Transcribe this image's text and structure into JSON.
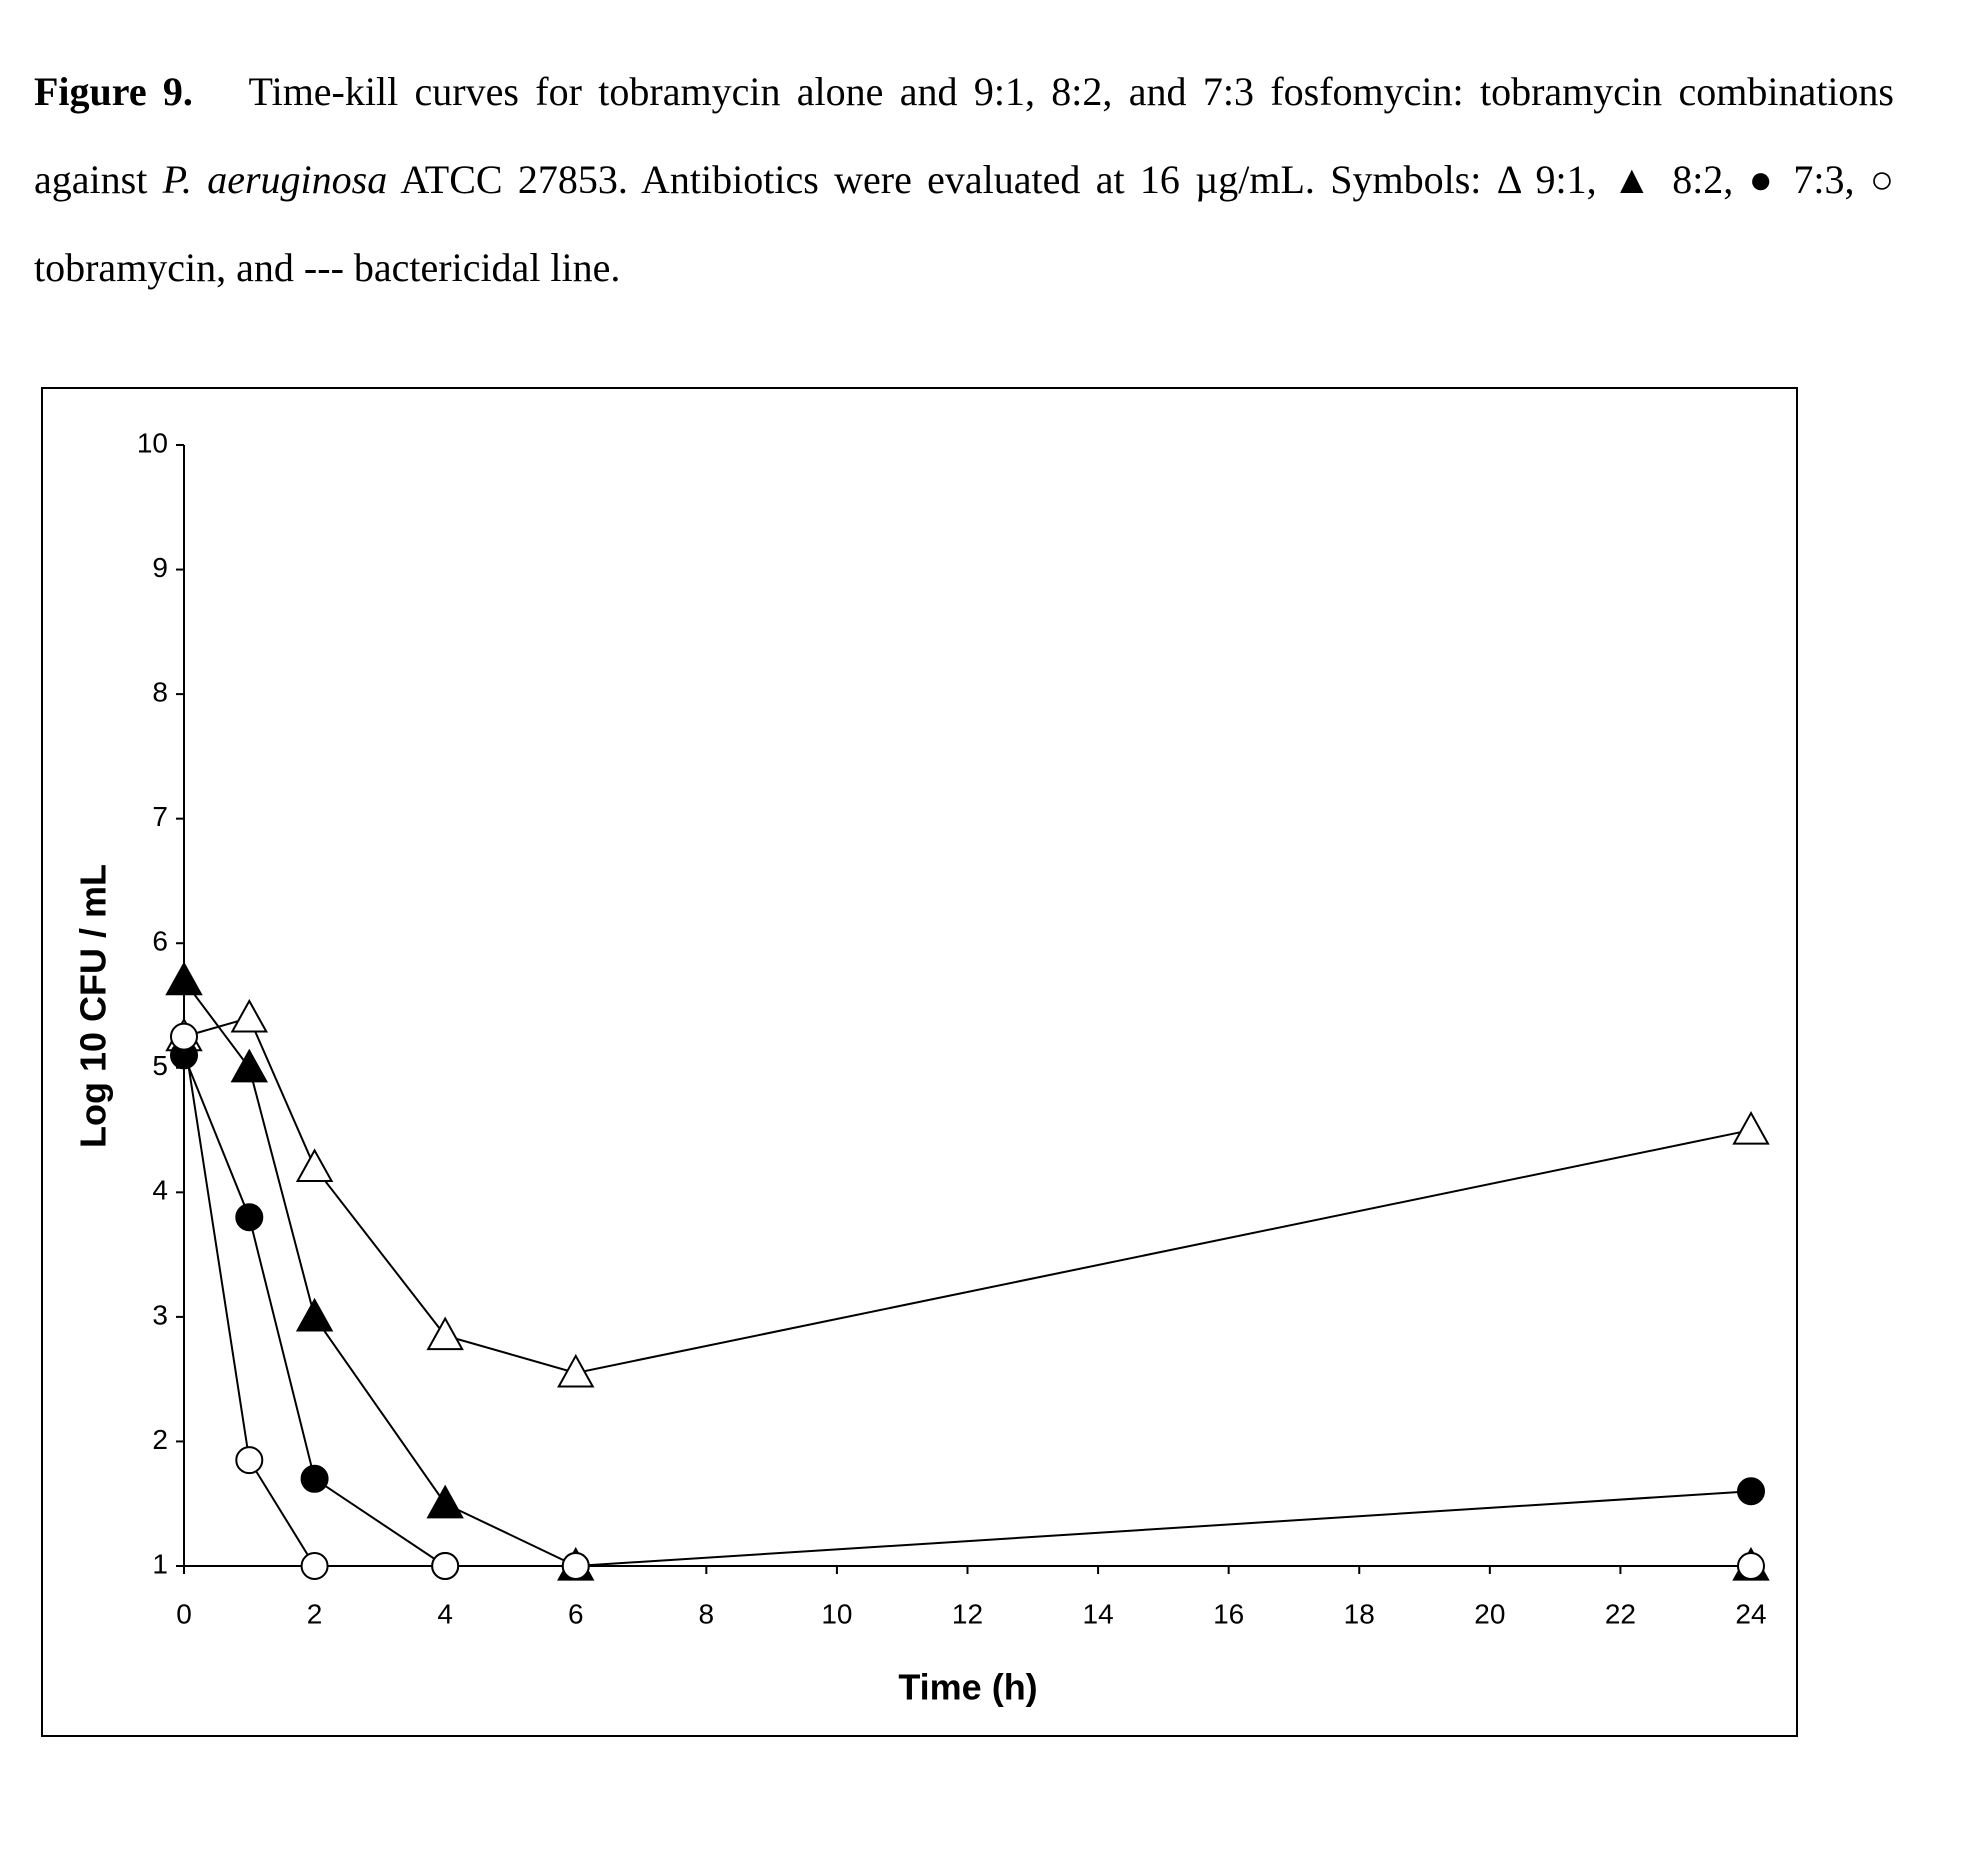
{
  "caption": {
    "parts": [
      "Figure 9.",
      "Time-kill curves for tobramycin alone and 9:1, 8:2, and 7:3 fosfomycin: tobramycin combinations against",
      "P. aeruginosa",
      "ATCC 27853.  Antibiotics were evaluated at 16 µg/mL.  Symbols: Δ 9:1,",
      "▲ 8:2,",
      "● 7:3,",
      "○ tobramycin, and",
      "--- bactericidal line."
    ]
  },
  "chart_data": {
    "type": "line",
    "x_label": "Time (h)",
    "y_label": "Log 10 CFU / mL",
    "x": [
      0,
      1,
      2,
      4,
      6,
      24
    ],
    "series": [
      {
        "name": "9:1",
        "color": "#000000",
        "marker": "triangle-open",
        "values": [
          5.25,
          5.4,
          4.2,
          2.85,
          2.55,
          4.5
        ]
      },
      {
        "name": "8:2",
        "color": "#000000",
        "marker": "triangle-filled",
        "values": [
          5.7,
          5.0,
          3.0,
          1.5,
          1.0,
          1.0
        ]
      },
      {
        "name": "7:3",
        "color": "#000000",
        "marker": "circle-filled",
        "values": [
          5.1,
          3.8,
          1.7,
          1.0,
          1.0,
          1.6
        ]
      },
      {
        "name": "tobramycin",
        "color": "#000000",
        "marker": "circle-open",
        "values": [
          5.25,
          1.85,
          1.0,
          1.0,
          1.0,
          1.0
        ]
      }
    ],
    "xlim": [
      0,
      24
    ],
    "xticks": [
      0,
      2,
      4,
      6,
      8,
      10,
      12,
      14,
      16,
      18,
      20,
      22,
      24
    ],
    "ylim": [
      1,
      10
    ],
    "yticks": [
      1,
      2,
      3,
      4,
      5,
      6,
      7,
      8,
      9,
      10
    ]
  }
}
